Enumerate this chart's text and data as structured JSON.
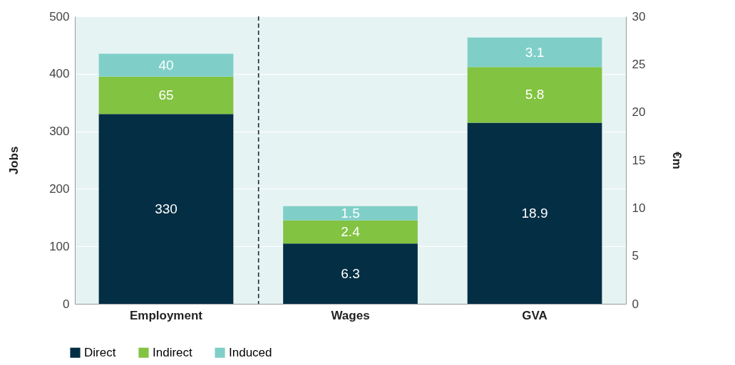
{
  "chart_data": {
    "type": "bar",
    "stacked": true,
    "categories": [
      "Employment",
      "Wages",
      "GVA"
    ],
    "ylabel": "Jobs",
    "y2label": "€m",
    "ylim": [
      0,
      500
    ],
    "yticks": [
      0,
      100,
      200,
      300,
      400,
      500
    ],
    "y2lim": [
      0,
      30
    ],
    "y2ticks": [
      0,
      5,
      10,
      15,
      20,
      25,
      30
    ],
    "series": [
      {
        "name": "Direct",
        "color": "#032e44",
        "values": [
          330,
          null,
          null
        ]
      },
      {
        "name": "Indirect",
        "color": "#82c341",
        "values": [
          65,
          null,
          null
        ]
      },
      {
        "name": "Induced",
        "color": "#7fcfc8",
        "values": [
          40,
          null,
          null
        ]
      },
      {
        "color": "#032e44",
        "values": [
          null,
          6.3,
          18.9
        ],
        "axis": "y2"
      },
      {
        "color": "#82c341",
        "values": [
          null,
          2.4,
          5.8
        ],
        "axis": "y2"
      },
      {
        "color": "#7fcfc8",
        "values": [
          null,
          1.5,
          3.1
        ],
        "axis": "y2"
      }
    ],
    "data_labels": true,
    "grid": "y",
    "legend": "bottom left",
    "ref_lines": [
      {
        "axis": "x",
        "value": "Wages",
        "line_style": "dashed",
        "color": "#1a2a36"
      }
    ]
  }
}
